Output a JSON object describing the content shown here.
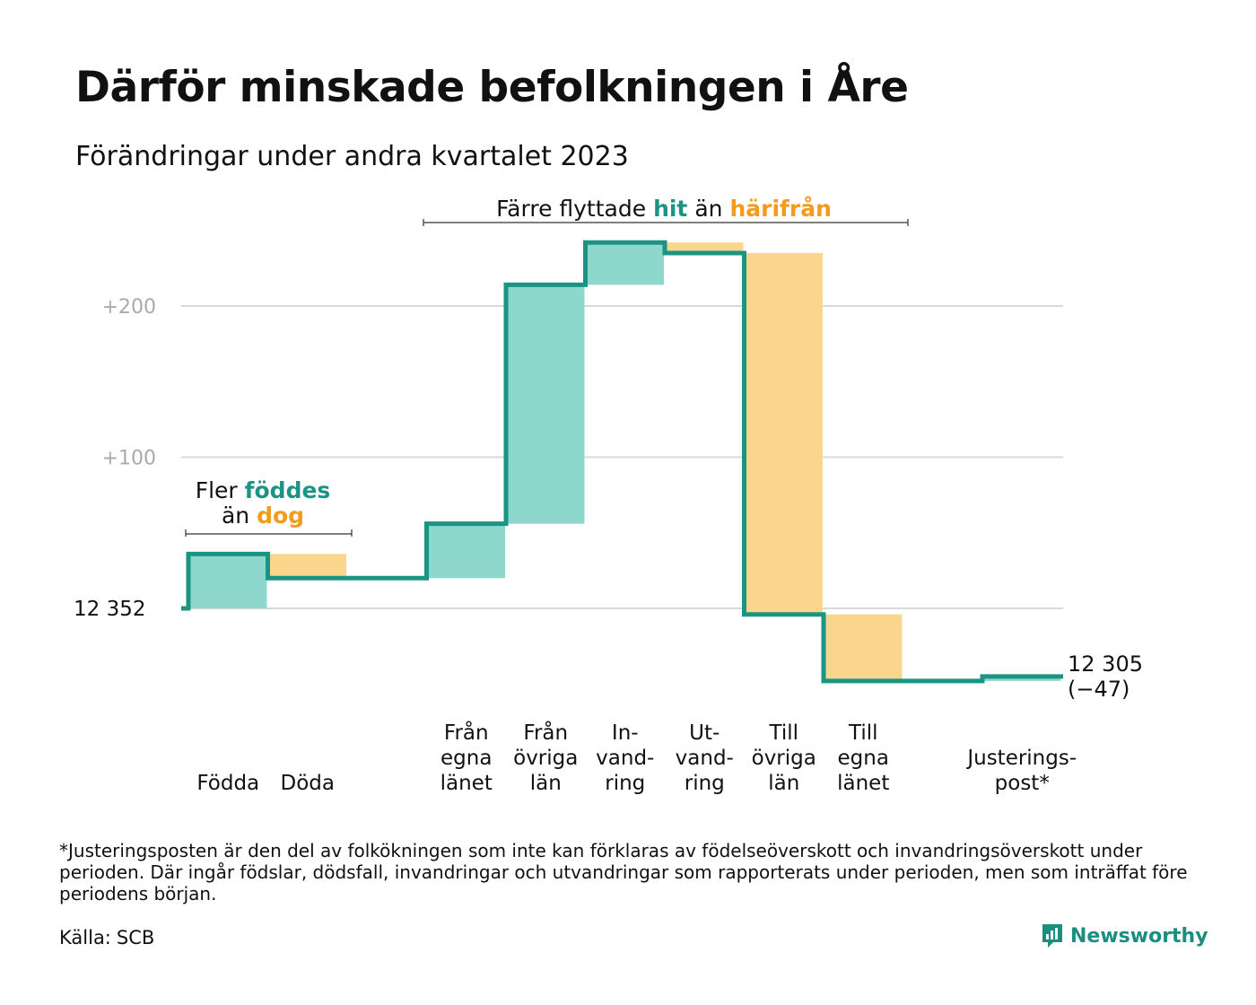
{
  "title": "Därför minskade befolkningen i Åre",
  "subtitle": "Förändringar under andra kvartalet 2023",
  "colors": {
    "increase": "#8dd7cc",
    "decrease": "#fad58e",
    "line": "#1b9484",
    "orange_text": "#f29b1e",
    "teal_text": "#1b9484",
    "grid": "#d9d9d9",
    "tick": "#aaaaaa"
  },
  "chart_data": {
    "type": "waterfall",
    "start_value": 12352,
    "start_label": "12  352",
    "end_value": 12305,
    "end_label": "12 305",
    "end_change_label": "(−47)",
    "y_ticks": [
      {
        "value": 100,
        "label": "+100"
      },
      {
        "value": 200,
        "label": "+200"
      }
    ],
    "ylim": [
      -60,
      245
    ],
    "steps": [
      {
        "name": "Födda",
        "label_lines": [
          "Födda"
        ],
        "change": 36,
        "kind": "increase"
      },
      {
        "name": "Döda",
        "label_lines": [
          "Döda"
        ],
        "change": -16,
        "kind": "decrease"
      },
      {
        "name": "gap",
        "label_lines": [],
        "change": 0,
        "kind": "none"
      },
      {
        "name": "Från egna länet",
        "label_lines": [
          "Från",
          "egna",
          "länet"
        ],
        "change": 36,
        "kind": "increase"
      },
      {
        "name": "Från övriga län",
        "label_lines": [
          "Från",
          "övriga",
          "län"
        ],
        "change": 158,
        "kind": "increase"
      },
      {
        "name": "Invandring",
        "label_lines": [
          "In-",
          "vand-",
          "ring"
        ],
        "change": 28,
        "kind": "increase"
      },
      {
        "name": "Utvandring",
        "label_lines": [
          "Ut-",
          "vand-",
          "ring"
        ],
        "change": -7,
        "kind": "decrease"
      },
      {
        "name": "Till övriga län",
        "label_lines": [
          "Till",
          "övriga",
          "län"
        ],
        "change": -239,
        "kind": "decrease"
      },
      {
        "name": "Till egna länet",
        "label_lines": [
          "Till",
          "egna",
          "länet"
        ],
        "change": -44,
        "kind": "decrease"
      },
      {
        "name": "gap2",
        "label_lines": [],
        "change": 0,
        "kind": "none"
      },
      {
        "name": "Justeringspost",
        "label_lines": [
          "Justerings-",
          "post*"
        ],
        "change": 3,
        "kind": "increase"
      }
    ],
    "annotations": [
      {
        "name": "births-vs-deaths",
        "parts_line1": [
          {
            "text": "Fler ",
            "style": "plain"
          },
          {
            "text": "föddes",
            "style": "teal"
          }
        ],
        "parts_line2": [
          {
            "text": "än ",
            "style": "plain"
          },
          {
            "text": "dog",
            "style": "orange"
          }
        ]
      },
      {
        "name": "moved-here-vs-away",
        "parts_line1": [
          {
            "text": "Färre flyttade ",
            "style": "plain"
          },
          {
            "text": "hit",
            "style": "teal"
          },
          {
            "text": " än ",
            "style": "plain"
          },
          {
            "text": "härifrån",
            "style": "orange"
          }
        ]
      }
    ]
  },
  "footnote": "*Justeringsposten är den del av folkökningen som inte kan förklaras av födelseöverskott och invandringsöverskott under perioden. Där ingår födslar, dödsfall, invandringar och utvandringar som rapporterats under perioden, men som inträffat före periodens början.",
  "source_label": "Källa:",
  "source_value": "SCB",
  "brand": "Newsworthy",
  "brand_icon": "newsworthy-logo-icon"
}
